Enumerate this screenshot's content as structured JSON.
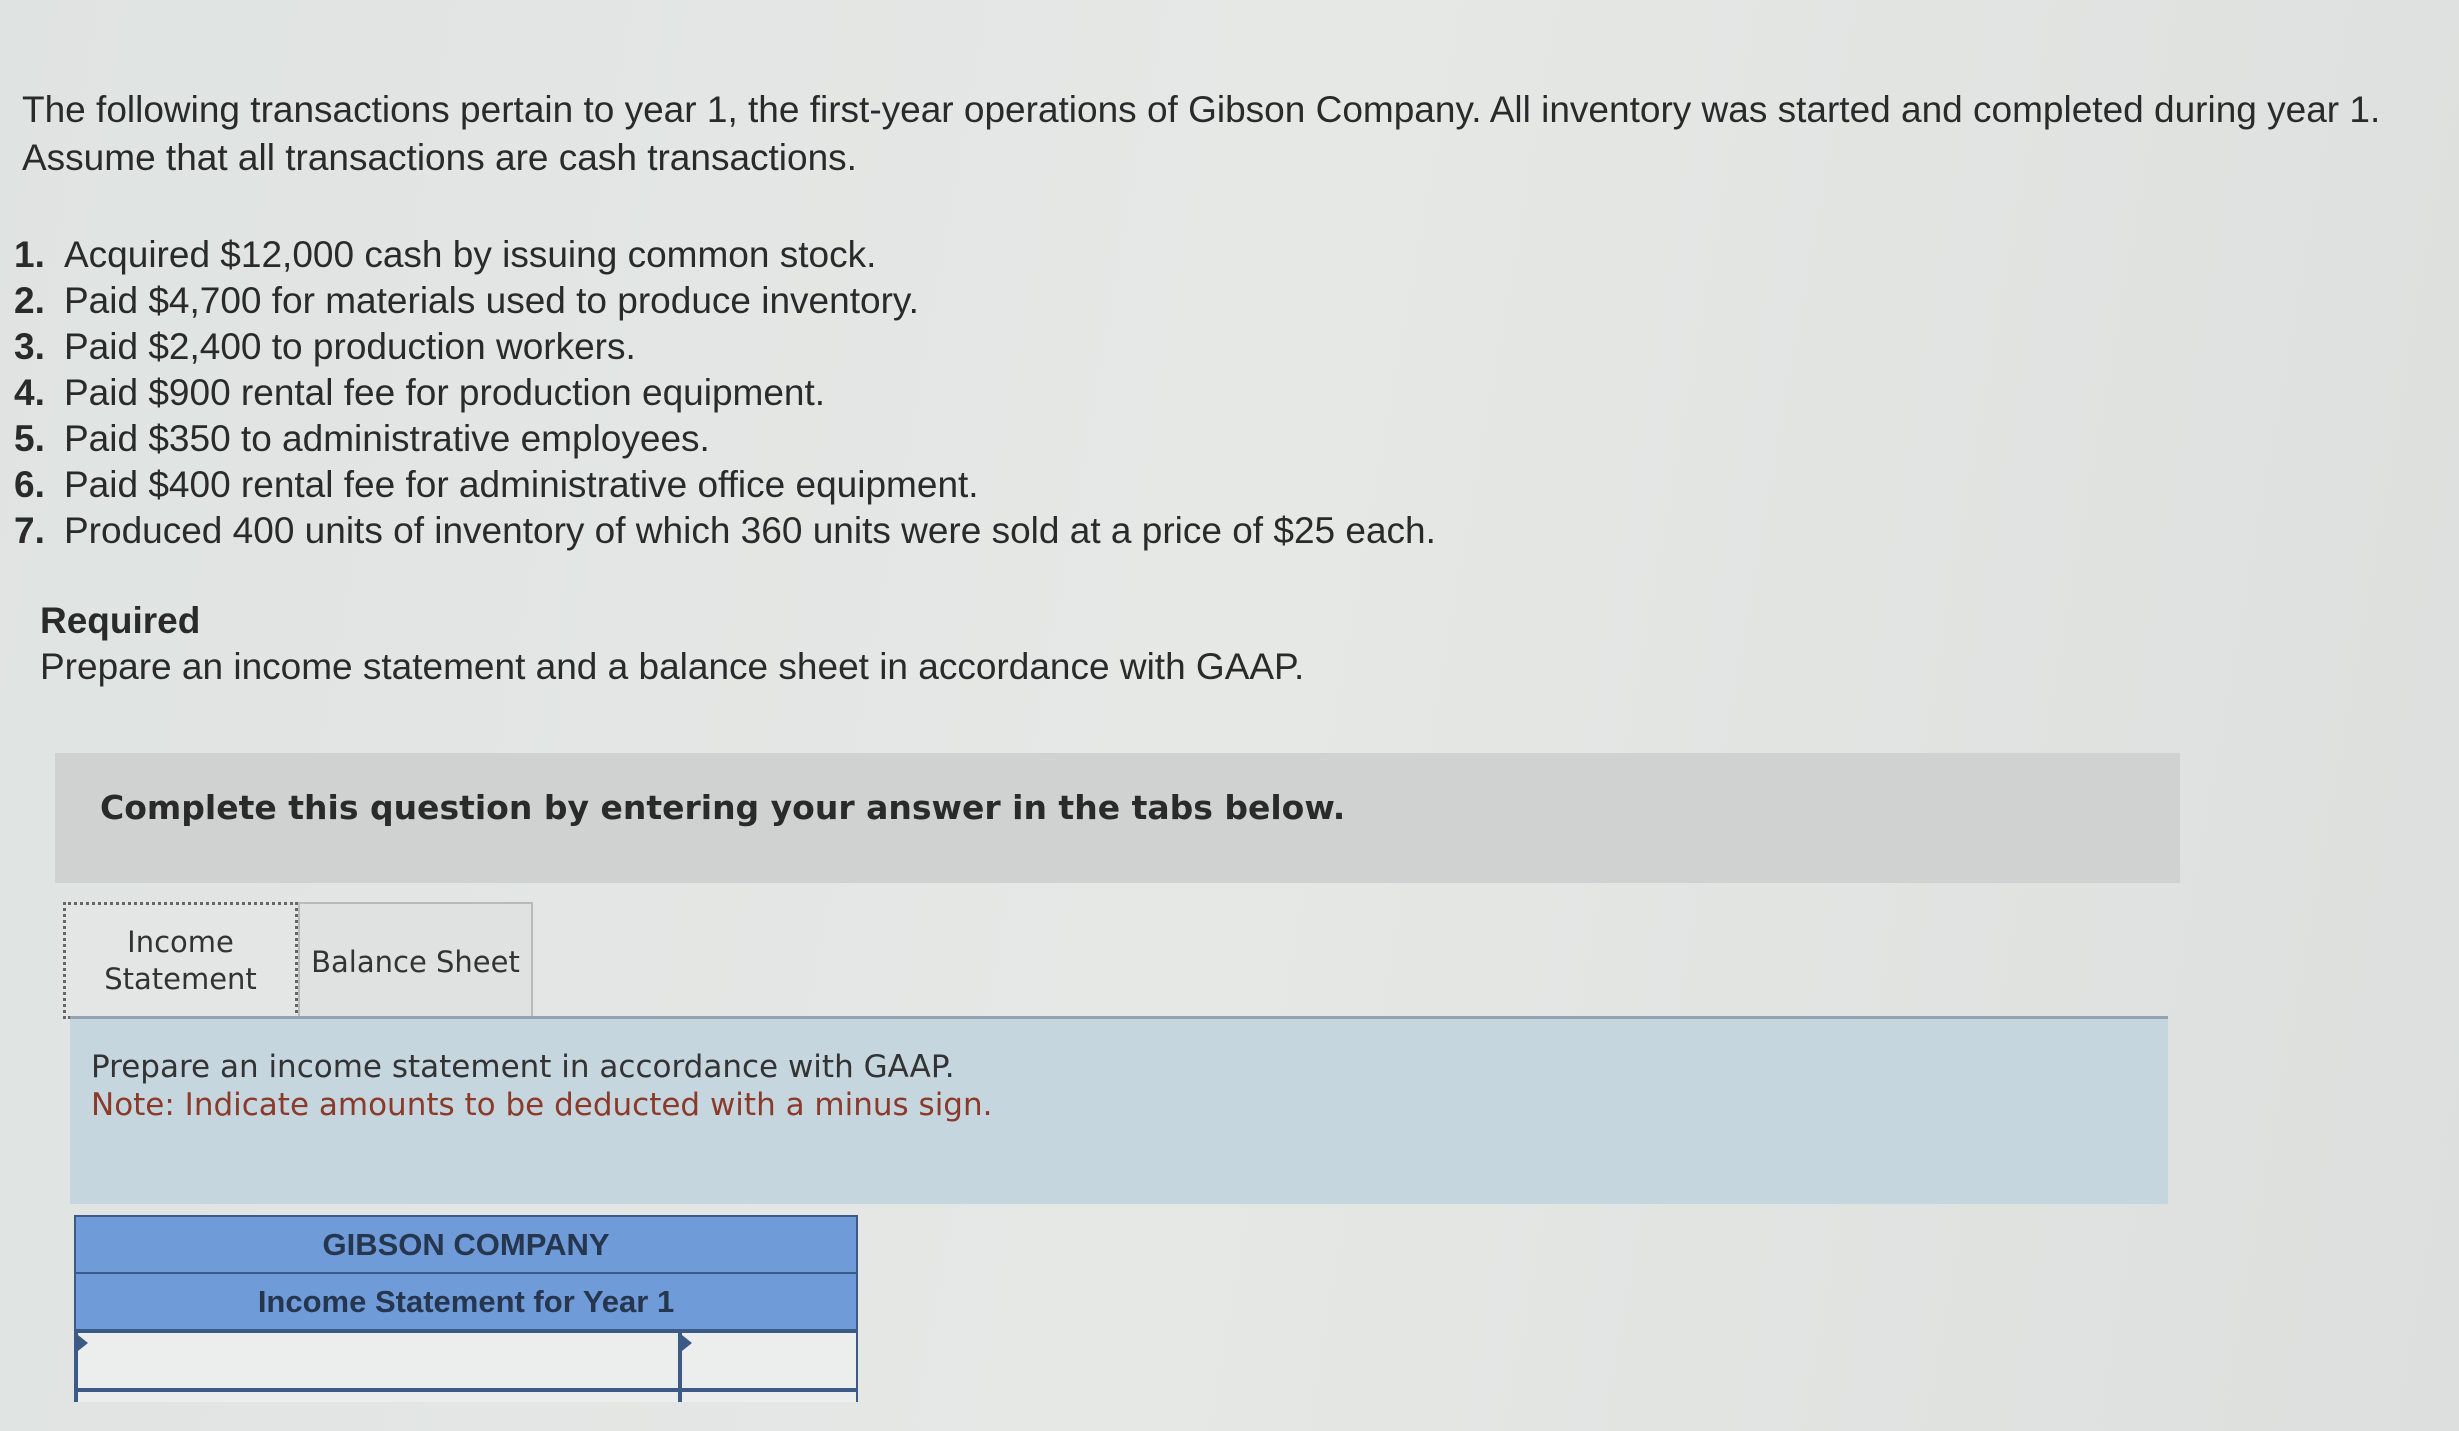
{
  "problem": {
    "intro": "The following transactions pertain to year 1, the first-year operations of Gibson Company. All inventory was started and completed during year 1. Assume that all transactions are cash transactions.",
    "transactions": [
      {
        "num": "1.",
        "text": "Acquired $12,000 cash by issuing common stock."
      },
      {
        "num": "2.",
        "text": "Paid $4,700 for materials used to produce inventory."
      },
      {
        "num": "3.",
        "text": "Paid $2,400 to production workers."
      },
      {
        "num": "4.",
        "text": "Paid $900 rental fee for production equipment."
      },
      {
        "num": "5.",
        "text": "Paid $350 to administrative employees."
      },
      {
        "num": "6.",
        "text": "Paid $400 rental fee for administrative office equipment."
      },
      {
        "num": "7.",
        "text": "Produced 400 units of inventory of which 360 units were sold at a price of $25 each."
      }
    ],
    "required_title": "Required",
    "required_text": "Prepare an income statement and a balance sheet in accordance with GAAP."
  },
  "instructions_banner": "Complete this question by entering your answer in the tabs below.",
  "tabs": [
    {
      "label": "Income Statement",
      "active": true
    },
    {
      "label": "Balance Sheet",
      "active": false
    }
  ],
  "panel": {
    "line1": "Prepare an income statement in accordance with GAAP.",
    "line2": "Note: Indicate amounts to be deducted with a minus sign."
  },
  "statement": {
    "company": "GIBSON COMPANY",
    "title": "Income Statement for Year 1",
    "rows": [
      {
        "label": "",
        "amount": ""
      }
    ]
  },
  "colors": {
    "header_blue": "#6f9bd8",
    "panel_blue": "#c6d6df",
    "note_red": "#8b3a2a"
  }
}
